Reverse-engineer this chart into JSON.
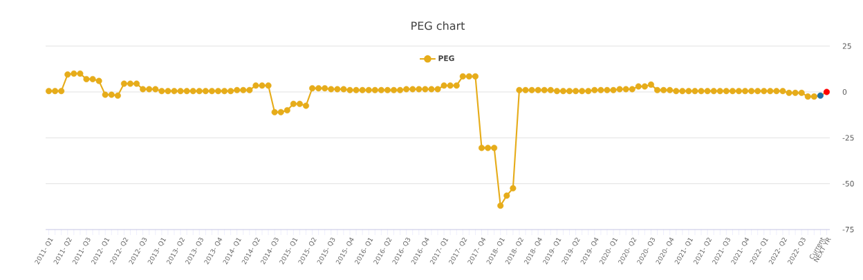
{
  "chart_data": {
    "type": "line",
    "title": "PEG chart",
    "categories": [
      "2011- Q1",
      null,
      null,
      "2011- Q2",
      null,
      null,
      "2011- Q3",
      null,
      null,
      "2012- Q1",
      null,
      null,
      "2012- Q2",
      null,
      null,
      "2012- Q3",
      null,
      null,
      "2013- Q1",
      null,
      null,
      "2013- Q2",
      null,
      null,
      "2013- Q3",
      null,
      null,
      "2013- Q4",
      null,
      null,
      "2014- Q1",
      null,
      null,
      "2014- Q2",
      null,
      null,
      "2014- Q3",
      null,
      null,
      "2015- Q1",
      null,
      null,
      "2015- Q2",
      null,
      null,
      "2015- Q3",
      null,
      null,
      "2015- Q4",
      null,
      null,
      "2016- Q1",
      null,
      null,
      "2016- Q2",
      null,
      null,
      "2016- Q3",
      null,
      null,
      "2016- Q4",
      null,
      null,
      "2017- Q1",
      null,
      null,
      "2017- Q2",
      null,
      null,
      "2017- Q4",
      null,
      null,
      "2018- Q1",
      null,
      null,
      "2018- Q2",
      null,
      null,
      "2018- Q4",
      null,
      null,
      "2019- Q1",
      null,
      null,
      "2019- Q2",
      null,
      null,
      "2019- Q4",
      null,
      null,
      "2020- Q1",
      null,
      null,
      "2020- Q2",
      null,
      null,
      "2020- Q3",
      null,
      null,
      "2020- Q4",
      null,
      null,
      "2021- Q1",
      null,
      null,
      "2021- Q2",
      null,
      null,
      "2021- Q3",
      null,
      null,
      "2021- Q4",
      null,
      null,
      "2022- Q1",
      null,
      null,
      "2022- Q2",
      null,
      null,
      "2022- Q3",
      null,
      null,
      "Current",
      "NEXT YR"
    ],
    "series": [
      {
        "name": "PEG",
        "color": "#e6ac1a",
        "values": [
          0.5,
          0.5,
          0.5,
          9.5,
          10,
          10,
          7,
          7,
          6,
          -1.5,
          -1.5,
          -2,
          4.5,
          4.5,
          4.5,
          1.5,
          1.5,
          1.5,
          0.5,
          0.5,
          0.5,
          0.5,
          0.5,
          0.5,
          0.5,
          0.5,
          0.5,
          0.5,
          0.5,
          0.5,
          1,
          1,
          1,
          3.5,
          3.5,
          3.5,
          -11,
          -11,
          -10,
          -6.5,
          -6.5,
          -7.5,
          2,
          2,
          2,
          1.5,
          1.5,
          1.5,
          1,
          1,
          1,
          1,
          1,
          1,
          1,
          1,
          1,
          1.5,
          1.5,
          1.5,
          1.5,
          1.5,
          1.5,
          3.5,
          3.5,
          3.5,
          8.5,
          8.5,
          8.5,
          -30.5,
          -30.5,
          -30.5,
          -62,
          -56.5,
          -52.5,
          1,
          1,
          1,
          1,
          1,
          1,
          0.5,
          0.5,
          0.5,
          0.5,
          0.5,
          0.5,
          1,
          1,
          1,
          1,
          1.5,
          1.5,
          1.5,
          3,
          3,
          4,
          1,
          1,
          1,
          0.5,
          0.5,
          0.5,
          0.5,
          0.5,
          0.5,
          0.5,
          0.5,
          0.5,
          0.5,
          0.5,
          0.5,
          0.5,
          0.5,
          0.5,
          0.5,
          0.5,
          0.5,
          -0.5,
          -0.5,
          -0.5,
          -2.5,
          -2.5,
          -2,
          0
        ],
        "colors": [
          "#e6ac1a",
          "#e6ac1a",
          "#e6ac1a",
          "#e6ac1a",
          "#e6ac1a",
          "#e6ac1a",
          "#e6ac1a",
          "#e6ac1a",
          "#e6ac1a",
          "#e6ac1a",
          "#e6ac1a",
          "#e6ac1a",
          "#e6ac1a",
          "#e6ac1a",
          "#e6ac1a",
          "#e6ac1a",
          "#e6ac1a",
          "#e6ac1a",
          "#e6ac1a",
          "#e6ac1a",
          "#e6ac1a",
          "#e6ac1a",
          "#e6ac1a",
          "#e6ac1a",
          "#e6ac1a",
          "#e6ac1a",
          "#e6ac1a",
          "#e6ac1a",
          "#e6ac1a",
          "#e6ac1a",
          "#e6ac1a",
          "#e6ac1a",
          "#e6ac1a",
          "#e6ac1a",
          "#e6ac1a",
          "#e6ac1a",
          "#e6ac1a",
          "#e6ac1a",
          "#e6ac1a",
          "#e6ac1a",
          "#e6ac1a",
          "#e6ac1a",
          "#e6ac1a",
          "#e6ac1a",
          "#e6ac1a",
          "#e6ac1a",
          "#e6ac1a",
          "#e6ac1a",
          "#e6ac1a",
          "#e6ac1a",
          "#e6ac1a",
          "#e6ac1a",
          "#e6ac1a",
          "#e6ac1a",
          "#e6ac1a",
          "#e6ac1a",
          "#e6ac1a",
          "#e6ac1a",
          "#e6ac1a",
          "#e6ac1a",
          "#e6ac1a",
          "#e6ac1a",
          "#e6ac1a",
          "#e6ac1a",
          "#e6ac1a",
          "#e6ac1a",
          "#e6ac1a",
          "#e6ac1a",
          "#e6ac1a",
          "#e6ac1a",
          "#e6ac1a",
          "#e6ac1a",
          "#e6ac1a",
          "#e6ac1a",
          "#e6ac1a",
          "#e6ac1a",
          "#e6ac1a",
          "#e6ac1a",
          "#e6ac1a",
          "#e6ac1a",
          "#e6ac1a",
          "#e6ac1a",
          "#e6ac1a",
          "#e6ac1a",
          "#e6ac1a",
          "#e6ac1a",
          "#e6ac1a",
          "#e6ac1a",
          "#e6ac1a",
          "#e6ac1a",
          "#e6ac1a",
          "#e6ac1a",
          "#e6ac1a",
          "#e6ac1a",
          "#e6ac1a",
          "#e6ac1a",
          "#e6ac1a",
          "#e6ac1a",
          "#e6ac1a",
          "#e6ac1a",
          "#e6ac1a",
          "#e6ac1a",
          "#e6ac1a",
          "#e6ac1a",
          "#e6ac1a",
          "#e6ac1a",
          "#e6ac1a",
          "#e6ac1a",
          "#e6ac1a",
          "#e6ac1a",
          "#e6ac1a",
          "#e6ac1a",
          "#e6ac1a",
          "#e6ac1a",
          "#e6ac1a",
          "#e6ac1a",
          "#e6ac1a",
          "#e6ac1a",
          "#e6ac1a",
          "#e6ac1a",
          "#e6ac1a",
          "#e6ac1a",
          "#e6ac1a",
          "#1f6fa8",
          "#ff0000"
        ]
      }
    ],
    "ylim": [
      -75,
      25
    ],
    "yticks": [
      -75,
      -50,
      -25,
      0,
      25
    ],
    "grid": "y",
    "legend": "top",
    "marker": "circle"
  }
}
